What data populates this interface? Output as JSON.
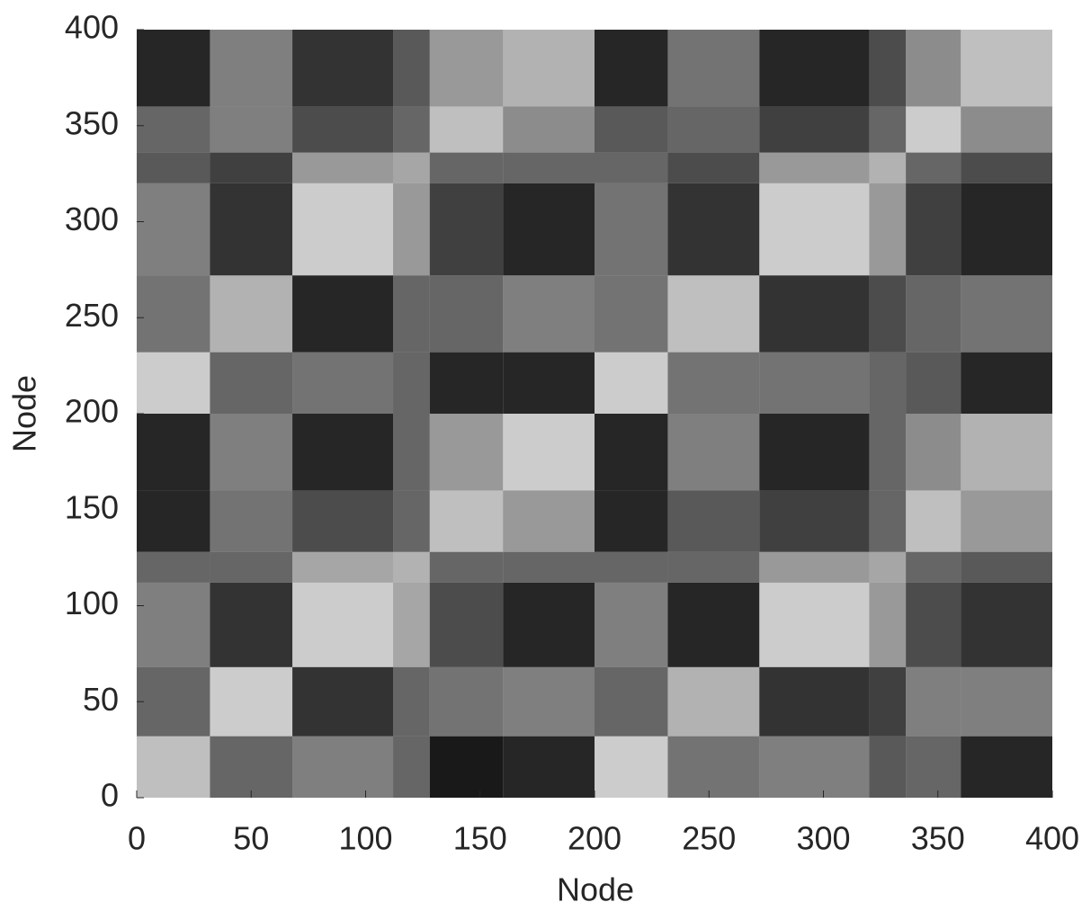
{
  "chart_data": {
    "type": "heatmap",
    "xlabel": "Node",
    "ylabel": "Node",
    "color": "#000000",
    "x_edges": [
      0,
      32,
      68,
      112,
      128,
      160,
      200,
      232,
      272,
      320,
      336,
      360,
      400
    ],
    "y_edges": [
      0,
      32,
      68,
      112,
      128,
      160,
      200,
      232,
      272,
      320,
      336,
      360,
      400
    ],
    "values": [
      [
        0.25,
        0.6,
        0.5,
        0.6,
        0.9,
        0.85,
        0.2,
        0.55,
        0.5,
        0.65,
        0.6,
        0.85
      ],
      [
        0.6,
        0.2,
        0.8,
        0.6,
        0.55,
        0.5,
        0.6,
        0.3,
        0.8,
        0.75,
        0.5,
        0.5
      ],
      [
        0.5,
        0.8,
        0.2,
        0.35,
        0.7,
        0.85,
        0.5,
        0.85,
        0.2,
        0.4,
        0.7,
        0.8
      ],
      [
        0.6,
        0.6,
        0.35,
        0.3,
        0.6,
        0.6,
        0.6,
        0.6,
        0.4,
        0.35,
        0.6,
        0.65
      ],
      [
        0.85,
        0.55,
        0.7,
        0.6,
        0.25,
        0.4,
        0.85,
        0.65,
        0.75,
        0.6,
        0.25,
        0.4
      ],
      [
        0.85,
        0.5,
        0.85,
        0.6,
        0.4,
        0.2,
        0.85,
        0.5,
        0.85,
        0.6,
        0.45,
        0.3
      ],
      [
        0.2,
        0.6,
        0.55,
        0.6,
        0.85,
        0.85,
        0.2,
        0.55,
        0.55,
        0.6,
        0.65,
        0.85
      ],
      [
        0.55,
        0.3,
        0.85,
        0.6,
        0.6,
        0.5,
        0.55,
        0.25,
        0.8,
        0.7,
        0.6,
        0.55
      ],
      [
        0.5,
        0.8,
        0.2,
        0.4,
        0.75,
        0.85,
        0.55,
        0.8,
        0.2,
        0.4,
        0.75,
        0.85
      ],
      [
        0.65,
        0.75,
        0.4,
        0.35,
        0.6,
        0.6,
        0.6,
        0.7,
        0.4,
        0.3,
        0.6,
        0.7
      ],
      [
        0.6,
        0.5,
        0.7,
        0.6,
        0.25,
        0.45,
        0.65,
        0.6,
        0.75,
        0.6,
        0.2,
        0.45
      ],
      [
        0.85,
        0.5,
        0.8,
        0.65,
        0.4,
        0.3,
        0.85,
        0.55,
        0.85,
        0.7,
        0.45,
        0.25
      ]
    ],
    "xlim": [
      0,
      400
    ],
    "ylim": [
      0,
      400
    ],
    "xticks": [
      0,
      50,
      100,
      150,
      200,
      250,
      300,
      350,
      400
    ],
    "yticks": [
      0,
      50,
      100,
      150,
      200,
      250,
      300,
      350,
      400
    ]
  }
}
